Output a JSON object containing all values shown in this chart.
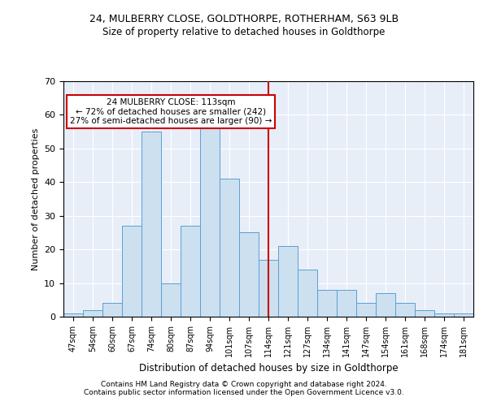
{
  "title1": "24, MULBERRY CLOSE, GOLDTHORPE, ROTHERHAM, S63 9LB",
  "title2": "Size of property relative to detached houses in Goldthorpe",
  "xlabel": "Distribution of detached houses by size in Goldthorpe",
  "ylabel": "Number of detached properties",
  "footnote1": "Contains HM Land Registry data © Crown copyright and database right 2024.",
  "footnote2": "Contains public sector information licensed under the Open Government Licence v3.0.",
  "annotation_line1": "24 MULBERRY CLOSE: 113sqm",
  "annotation_line2": "← 72% of detached houses are smaller (242)",
  "annotation_line3": "27% of semi-detached houses are larger (90) →",
  "bar_labels": [
    "47sqm",
    "54sqm",
    "60sqm",
    "67sqm",
    "74sqm",
    "80sqm",
    "87sqm",
    "94sqm",
    "101sqm",
    "107sqm",
    "114sqm",
    "121sqm",
    "127sqm",
    "134sqm",
    "141sqm",
    "147sqm",
    "154sqm",
    "161sqm",
    "168sqm",
    "174sqm",
    "181sqm"
  ],
  "bar_values": [
    1,
    2,
    4,
    27,
    55,
    10,
    27,
    57,
    41,
    25,
    17,
    21,
    14,
    8,
    8,
    4,
    7,
    4,
    2,
    1,
    1
  ],
  "bar_color": "#cce0f0",
  "bar_edge_color": "#5a9fd4",
  "vline_x": 10.0,
  "vline_color": "#cc0000",
  "annotation_box_color": "#cc0000",
  "background_color": "#e8eef8",
  "ylim": [
    0,
    70
  ],
  "yticks": [
    0,
    10,
    20,
    30,
    40,
    50,
    60,
    70
  ]
}
